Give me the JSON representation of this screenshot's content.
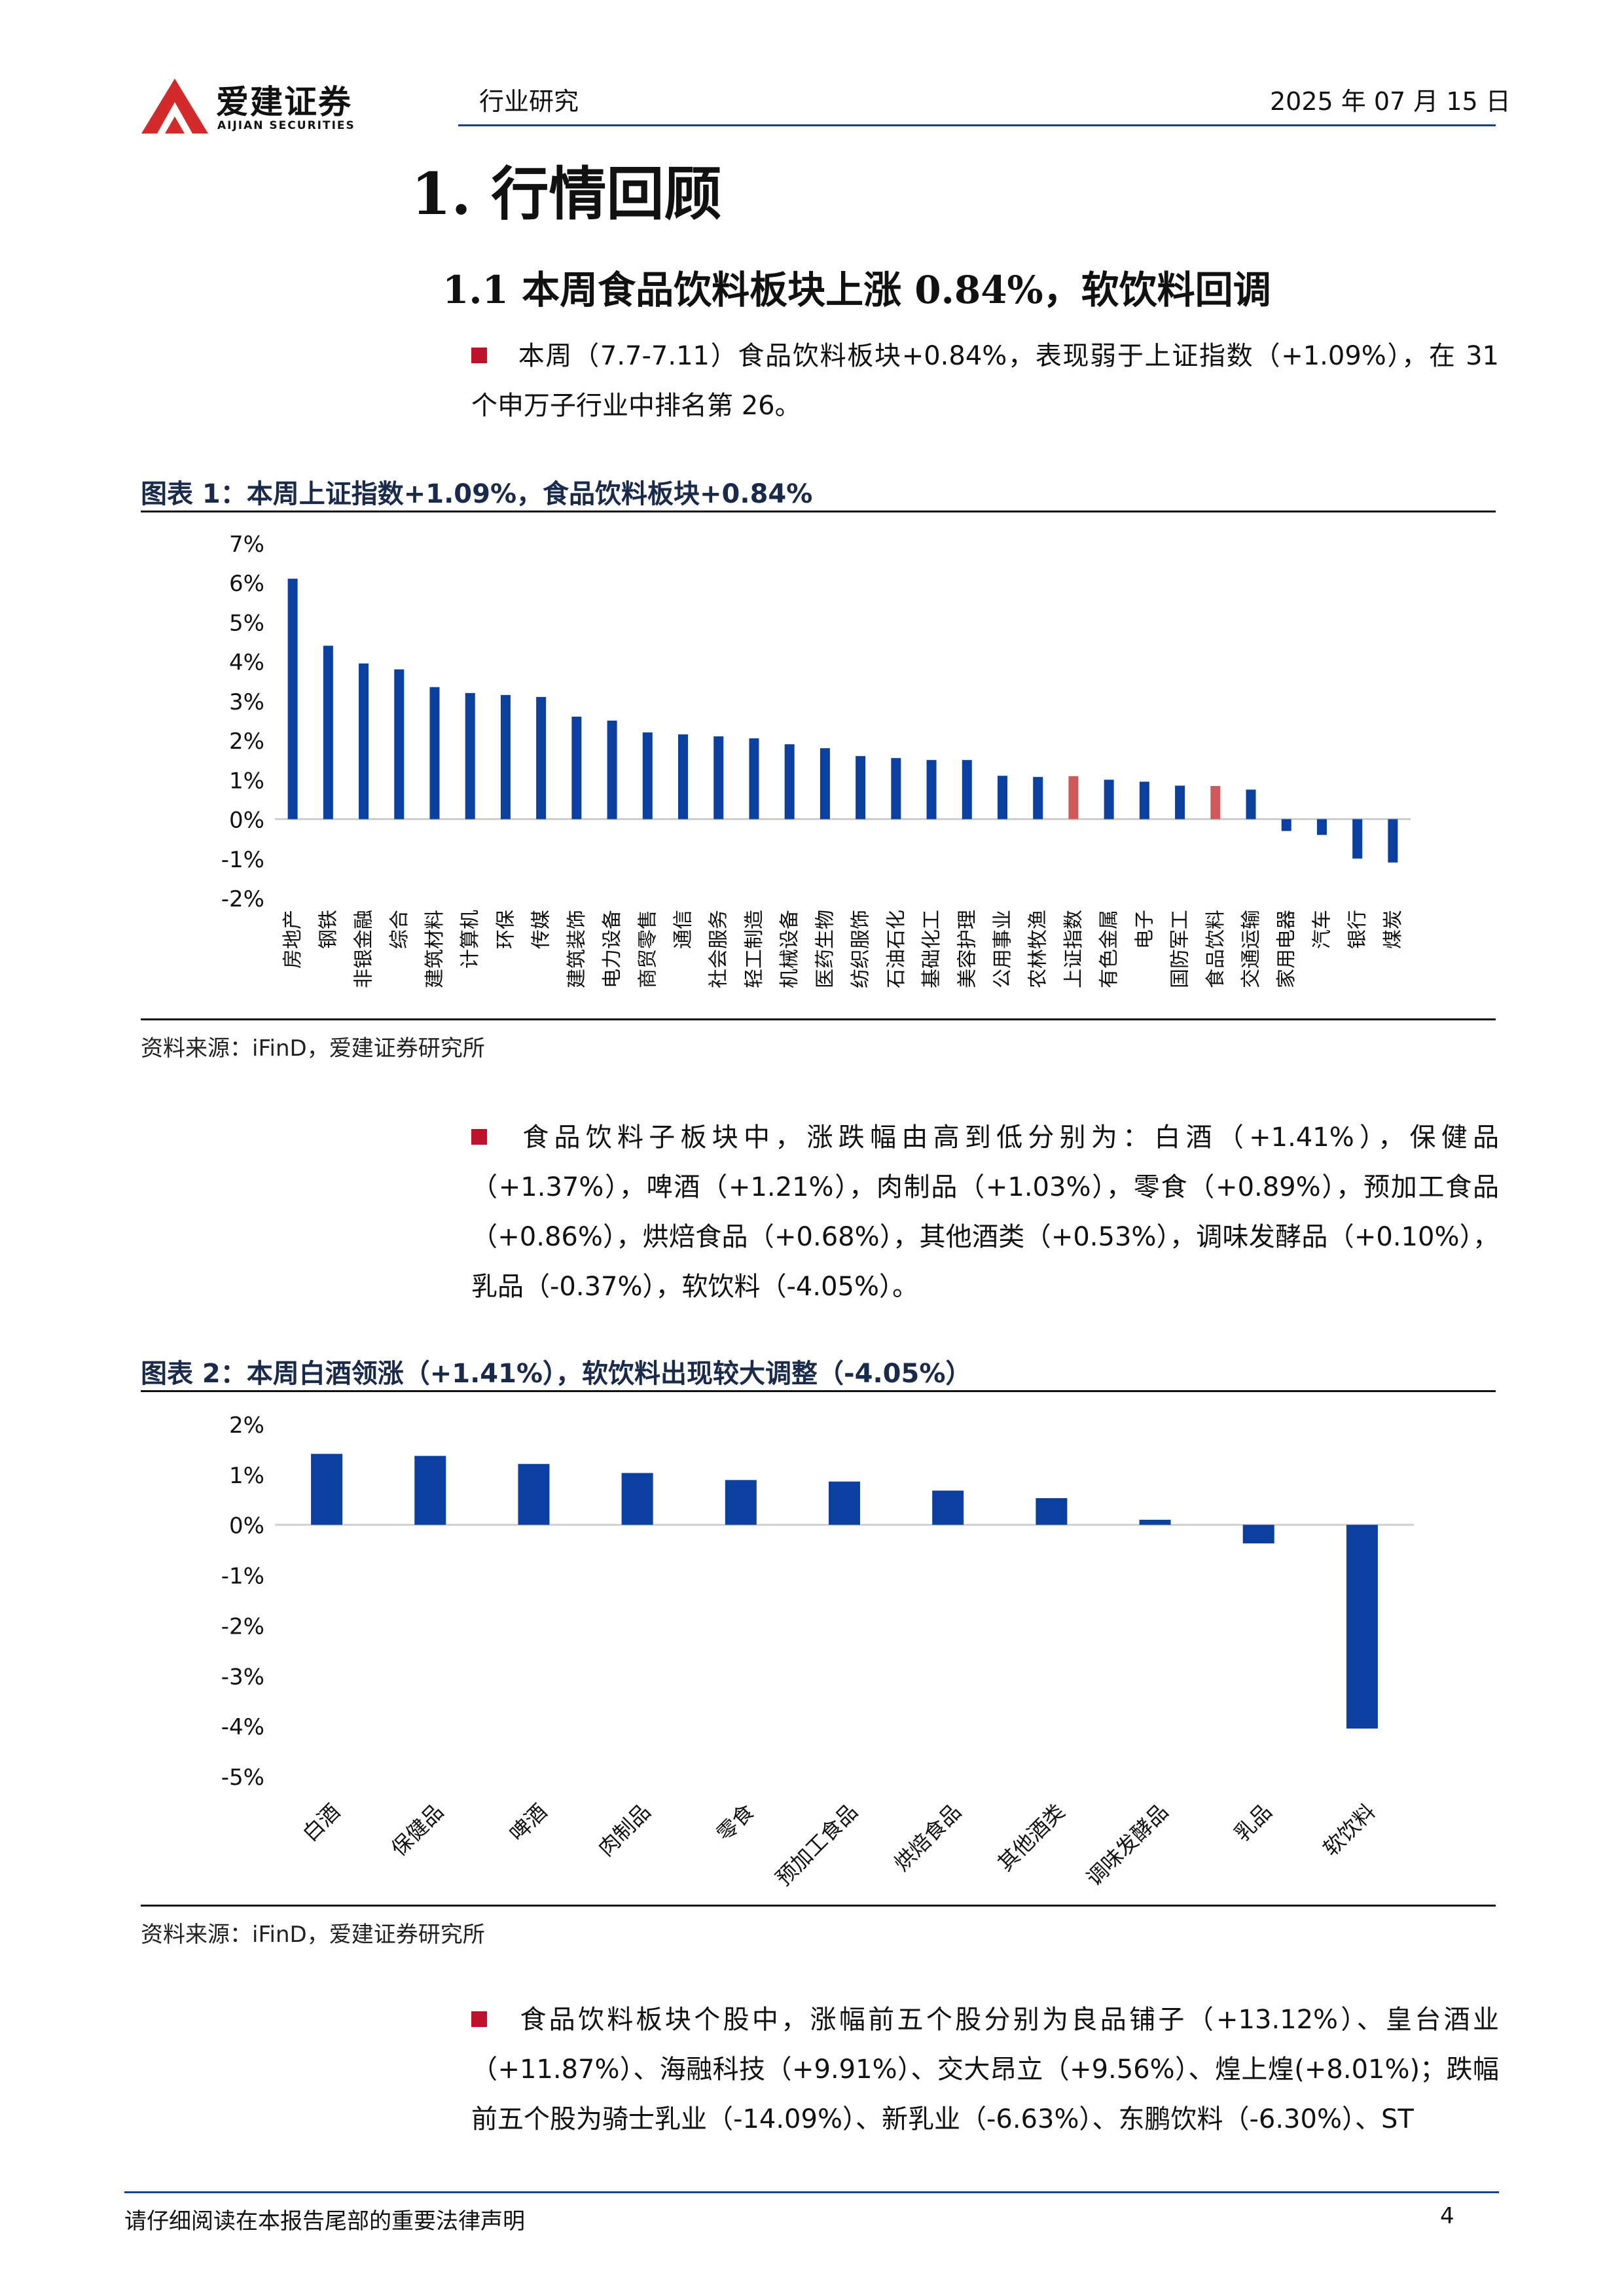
{
  "header": {
    "logo_cn": "爱建证券",
    "logo_en": "AIJIAN SECURITIES",
    "category": "行业研究",
    "date": "2025 年 07 月 15 日"
  },
  "section": {
    "h1": "1.  行情回顾",
    "h2": "1.1  本周食品饮料板块上涨 0.84%，软饮料回调"
  },
  "paragraphs": {
    "p1": "本周（7.7-7.11）食品饮料板块+0.84%，表现弱于上证指数（+1.09%），在 31 个申万子行业中排名第 26。",
    "p2": "食品饮料子板块中，涨跌幅由高到低分别为：白酒（+1.41%），保健品（+1.37%），啤酒（+1.21%），肉制品（+1.03%），零食（+0.89%），预加工食品（+0.86%），烘焙食品（+0.68%），其他酒类（+0.53%），调味发酵品（+0.10%），乳品（-0.37%），软饮料（-4.05%）。",
    "p3": "食品饮料板块个股中，涨幅前五个股分别为良品铺子（+13.12%）、皇台酒业（+11.87%）、海融科技（+9.91%）、交大昂立（+9.56%）、煌上煌(+8.01%)；跌幅前五个股为骑士乳业（-14.09%）、新乳业（-6.63%）、东鹏饮料（-6.30%）、ST"
  },
  "figures": {
    "fig1_title": "图表 1：本周上证指数+1.09%，食品饮料板块+0.84%",
    "fig1_source": "资料来源：iFinD，爱建证券研究所",
    "fig2_title": "图表 2：本周白酒领涨（+1.41%），软饮料出现较大调整（-4.05%）",
    "fig2_source": "资料来源：iFinD，爱建证券研究所"
  },
  "chart_data": [
    {
      "type": "bar",
      "categories": [
        "房地产",
        "钢铁",
        "非银金融",
        "综合",
        "建筑材料",
        "计算机",
        "环保",
        "传媒",
        "建筑装饰",
        "电力设备",
        "商贸零售",
        "通信",
        "社会服务",
        "轻工制造",
        "机械设备",
        "医药生物",
        "纺织服饰",
        "石油石化",
        "基础化工",
        "美容护理",
        "公用事业",
        "农林牧渔",
        "上证指数",
        "有色金属",
        "电子",
        "国防军工",
        "食品饮料",
        "交通运输",
        "家用电器",
        "汽车",
        "银行",
        "煤炭"
      ],
      "values": [
        6.1,
        4.4,
        3.95,
        3.8,
        3.35,
        3.2,
        3.15,
        3.1,
        2.6,
        2.5,
        2.2,
        2.15,
        2.1,
        2.05,
        1.9,
        1.8,
        1.6,
        1.55,
        1.5,
        1.5,
        1.1,
        1.07,
        1.09,
        1.0,
        0.95,
        0.85,
        0.84,
        0.75,
        -0.3,
        -0.4,
        -1.0,
        -1.1
      ],
      "highlight": [
        "上证指数",
        "食品饮料"
      ],
      "colors": {
        "bar": "#0b3fa0",
        "highlight": "#d0585a"
      },
      "yticks": [
        "7%",
        "6%",
        "5%",
        "4%",
        "3%",
        "2%",
        "1%",
        "0%",
        "-1%",
        "-2%"
      ],
      "ylim": [
        -2,
        7
      ],
      "grid": false
    },
    {
      "type": "bar",
      "categories": [
        "白酒",
        "保健品",
        "啤酒",
        "肉制品",
        "零食",
        "预加工食品",
        "烘焙食品",
        "其他酒类",
        "调味发酵品",
        "乳品",
        "软饮料"
      ],
      "values": [
        1.41,
        1.37,
        1.21,
        1.03,
        0.89,
        0.86,
        0.68,
        0.53,
        0.1,
        -0.37,
        -4.05
      ],
      "colors": {
        "bar": "#0b3fa0"
      },
      "yticks": [
        "2%",
        "1%",
        "0%",
        "-1%",
        "-2%",
        "-3%",
        "-4%",
        "-5%"
      ],
      "ylim": [
        -5,
        2
      ],
      "grid": false
    }
  ],
  "footer": {
    "notice": "请仔细阅读在本报告尾部的重要法律声明",
    "page": "4"
  }
}
